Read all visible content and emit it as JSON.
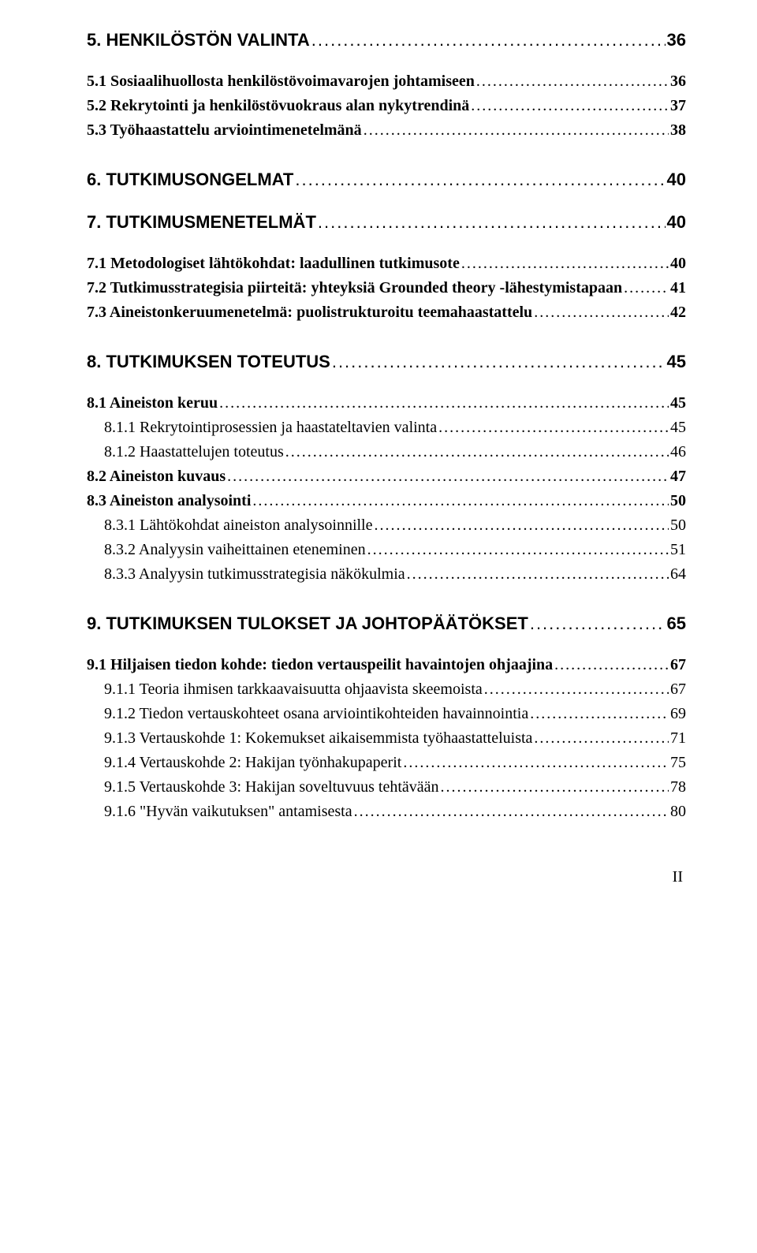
{
  "entries": [
    {
      "level": "h1",
      "label": "5. HENKILÖSTÖN VALINTA",
      "page": "36"
    },
    {
      "level": "h2",
      "label": "5.1 Sosiaalihuollosta henkilöstövoimavarojen johtamiseen",
      "page": "36"
    },
    {
      "level": "h2",
      "label": "5.2 Rekrytointi ja henkilöstövuokraus alan nykytrendinä",
      "page": "37"
    },
    {
      "level": "h2",
      "label": "5.3 Työhaastattelu arviointimenetelmänä",
      "page": "38"
    },
    {
      "level": "h1",
      "label": "6. TUTKIMUSONGELMAT",
      "page": "40",
      "gap": "lg"
    },
    {
      "level": "h1",
      "label": "7. TUTKIMUSMENETELMÄT",
      "page": "40"
    },
    {
      "level": "h2",
      "label": "7.1 Metodologiset lähtökohdat: laadullinen tutkimusote",
      "page": "40"
    },
    {
      "level": "h2",
      "label": "7.2 Tutkimusstrategisia piirteitä: yhteyksiä Grounded theory -lähestymistapaan",
      "page": "41"
    },
    {
      "level": "h2",
      "label": "7.3 Aineistonkeruumenetelmä: puolistrukturoitu teemahaastattelu",
      "page": "42"
    },
    {
      "level": "h1",
      "label": "8. TUTKIMUKSEN TOTEUTUS",
      "page": "45",
      "gap": "lg"
    },
    {
      "level": "h2",
      "label": "8.1 Aineiston keruu",
      "page": "45"
    },
    {
      "level": "h3",
      "label": "8.1.1 Rekrytointiprosessien ja haastateltavien valinta",
      "page": "45"
    },
    {
      "level": "h3",
      "label": "8.1.2 Haastattelujen toteutus",
      "page": "46"
    },
    {
      "level": "h2",
      "label": "8.2 Aineiston kuvaus",
      "page": "47"
    },
    {
      "level": "h2",
      "label": "8.3 Aineiston analysointi",
      "page": "50"
    },
    {
      "level": "h3",
      "label": "8.3.1 Lähtökohdat aineiston analysoinnille",
      "page": "50"
    },
    {
      "level": "h3",
      "label": "8.3.2 Analyysin vaiheittainen eteneminen",
      "page": "51"
    },
    {
      "level": "h3",
      "label": "8.3.3 Analyysin tutkimusstrategisia näkökulmia",
      "page": "64"
    },
    {
      "level": "h1",
      "label": "9. TUTKIMUKSEN TULOKSET JA JOHTOPÄÄTÖKSET",
      "page": "65",
      "gap": "lg"
    },
    {
      "level": "h2",
      "label": "9.1 Hiljaisen tiedon kohde: tiedon vertauspeilit havaintojen ohjaajina",
      "page": "67"
    },
    {
      "level": "h3",
      "label": "9.1.1 Teoria ihmisen tarkkaavaisuutta ohjaavista skeemoista",
      "page": "67"
    },
    {
      "level": "h3",
      "label": "9.1.2 Tiedon vertauskohteet osana arviointikohteiden havainnointia",
      "page": "69"
    },
    {
      "level": "h3",
      "label": "9.1.3 Vertauskohde 1: Kokemukset aikaisemmista työhaastatteluista",
      "page": "71"
    },
    {
      "level": "h3",
      "label": "9.1.4 Vertauskohde 2: Hakijan työnhakupaperit",
      "page": "75"
    },
    {
      "level": "h3",
      "label": "9.1.5 Vertauskohde 3: Hakijan soveltuvuus tehtävään",
      "page": "78"
    },
    {
      "level": "h3",
      "label": "9.1.6 \"Hyvän vaikutuksen\" antamisesta",
      "page": "80"
    }
  ],
  "page_number": "II"
}
